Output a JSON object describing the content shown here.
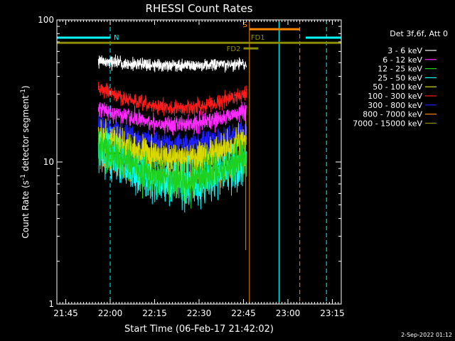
{
  "chart_data": {
    "type": "line",
    "title": "RHESSI Count Rates",
    "xlabel": "Start Time (06-Feb-17 21:42:02)",
    "ylabel_parts": [
      "Count Rate (s",
      "-1",
      " detector segment",
      "-1",
      ")"
    ],
    "yscale": "log",
    "ylim": [
      1,
      100
    ],
    "xlim_minutes_after_2142": [
      0,
      96
    ],
    "x_ticks": [
      {
        "label": "21:45",
        "min": 3
      },
      {
        "label": "22:00",
        "min": 18
      },
      {
        "label": "22:15",
        "min": 33
      },
      {
        "label": "22:30",
        "min": 48
      },
      {
        "label": "22:45",
        "min": 63
      },
      {
        "label": "23:00",
        "min": 78
      },
      {
        "label": "23:15",
        "min": 93
      }
    ],
    "y_ticks": [
      {
        "label": "1",
        "value": 1
      },
      {
        "label": "10",
        "value": 10
      },
      {
        "label": "100",
        "value": 100
      }
    ],
    "legend_header": "Det 3f,6f, Att 0",
    "series": [
      {
        "name": "3 - 6 keV",
        "color": "#ffffff",
        "level": [
          51,
          48,
          49
        ],
        "noise": 0.05
      },
      {
        "name": "6 - 12 keV",
        "color": "#ff2aff",
        "level": [
          24,
          18.5,
          23
        ],
        "noise": 0.07
      },
      {
        "name": "12 - 25 keV",
        "color": "#1fd11f",
        "level": [
          13,
          7.5,
          11
        ],
        "noise": 0.16
      },
      {
        "name": "25 - 50 keV",
        "color": "#00ffff",
        "level": [
          12,
          7,
          10
        ],
        "noise": 0.17
      },
      {
        "name": "50 - 100 keV",
        "color": "#d9d900",
        "level": [
          15.5,
          10.5,
          14
        ],
        "noise": 0.13
      },
      {
        "name": "100 - 300 keV",
        "color": "#ff1a1a",
        "level": [
          33,
          24,
          31
        ],
        "noise": 0.06
      },
      {
        "name": "300 - 800 keV",
        "color": "#2020ff",
        "level": [
          19,
          13.5,
          17
        ],
        "noise": 0.08
      },
      {
        "name": "800 - 7000 keV",
        "color": "#ff8800",
        "level": [
          11,
          7.8,
          10
        ],
        "noise": 0.09
      },
      {
        "name": "7000 - 15000 keV",
        "color": "#8c8c00",
        "level": [
          15,
          11,
          14
        ],
        "noise": 0.1
      }
    ],
    "data_span_minutes": [
      14,
      64
    ],
    "flags": [
      {
        "label": "N",
        "color": "#00ffff",
        "value": 75,
        "segments": [
          [
            0,
            18
          ],
          [
            84,
            96
          ]
        ]
      },
      {
        "label": "S",
        "color": "#ff8800",
        "value": 86,
        "segments": [
          [
            65,
            82
          ]
        ]
      },
      {
        "label": "FD1",
        "color": "#8c8c00",
        "value": 69,
        "segments": [
          [
            0,
            96
          ]
        ]
      },
      {
        "label": "FD2",
        "color": "#8c8c00",
        "value": 63,
        "segments": [
          [
            63,
            68
          ]
        ]
      }
    ],
    "vertical_markers": [
      {
        "min": 0,
        "color": "#00ffff",
        "style": "solid"
      },
      {
        "min": 18,
        "color": "#00ffff",
        "style": "dashed"
      },
      {
        "min": 65,
        "color": "#ff8800",
        "style": "solid"
      },
      {
        "min": 75,
        "color": "#00ffff",
        "style": "solid"
      },
      {
        "min": 82,
        "color": "#ff8800",
        "style": "dashed"
      },
      {
        "min": 91,
        "color": "#00ffff",
        "style": "dashed"
      }
    ],
    "grid": false,
    "legend_position": "right"
  },
  "footer": {
    "date": "2-Sep-2022 01:12"
  }
}
